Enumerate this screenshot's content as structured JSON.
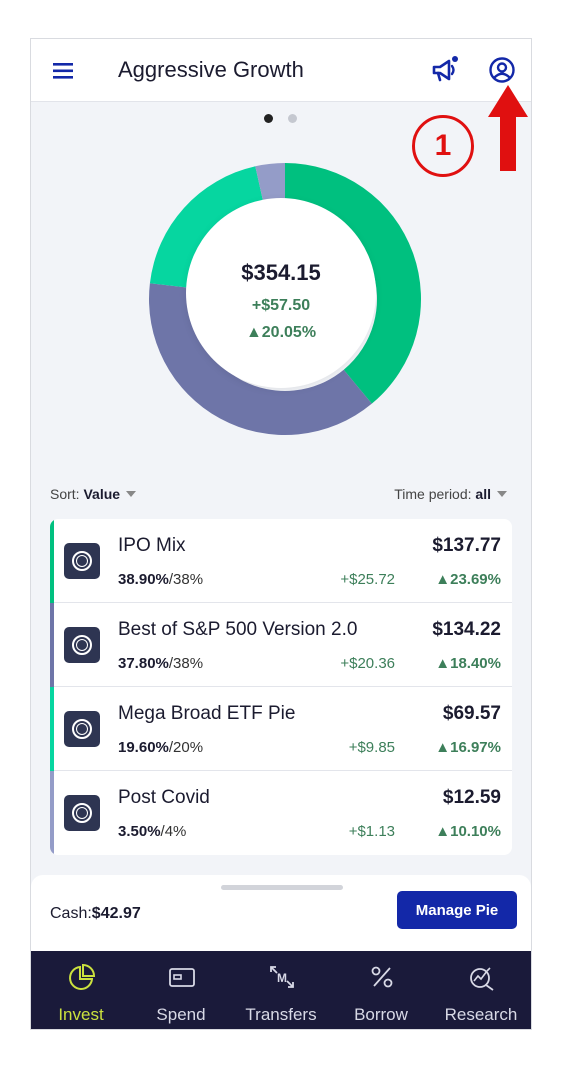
{
  "header": {
    "title": "Aggressive Growth"
  },
  "annotation": {
    "number": "1"
  },
  "colors": {
    "green": "#00c07f",
    "teal": "#06d6a0",
    "slate": "#6e75a8",
    "lavender": "#949cc8",
    "accent": "#1328a8",
    "nav_bg": "#1a1a3a",
    "nav_active": "#cbe13e",
    "annotation_red": "#e01010"
  },
  "donut": {
    "value": "$354.15",
    "gain": "+$57.50",
    "pct": "▲20.05%"
  },
  "chart_data": {
    "type": "pie",
    "categories": [
      "IPO Mix",
      "Best of S&P 500 Version 2.0",
      "Mega Broad ETF Pie",
      "Post Covid"
    ],
    "values": [
      38.9,
      37.8,
      19.6,
      3.5
    ],
    "colors": [
      "#00c07f",
      "#6e75a8",
      "#06d6a0",
      "#949cc8"
    ]
  },
  "sort": {
    "label": "Sort:",
    "value": "Value"
  },
  "time_period": {
    "label": "Time period:",
    "value": "all"
  },
  "slices": [
    {
      "name": "IPO Mix",
      "value": "$137.77",
      "actual": "38.90%",
      "target": "/38%",
      "gain": "+$25.72",
      "return": "▲23.69%",
      "color": "#00c07f"
    },
    {
      "name": "Best of S&P 500 Version 2.0",
      "value": "$134.22",
      "actual": "37.80%",
      "target": "/38%",
      "gain": "+$20.36",
      "return": "▲18.40%",
      "color": "#6e75a8"
    },
    {
      "name": "Mega Broad ETF Pie",
      "value": "$69.57",
      "actual": "19.60%",
      "target": "/20%",
      "gain": "+$9.85",
      "return": "▲16.97%",
      "color": "#06d6a0"
    },
    {
      "name": "Post Covid",
      "value": "$12.59",
      "actual": "3.50%",
      "target": "/4%",
      "gain": "+$1.13",
      "return": "▲10.10%",
      "color": "#949cc8"
    }
  ],
  "cash": {
    "label": "Cash:",
    "value": "$42.97"
  },
  "manage_button": "Manage Pie",
  "nav": [
    {
      "label": "Invest",
      "icon": "pie-chart-icon"
    },
    {
      "label": "Spend",
      "icon": "card-icon"
    },
    {
      "label": "Transfers",
      "icon": "transfers-icon"
    },
    {
      "label": "Borrow",
      "icon": "percent-icon"
    },
    {
      "label": "Research",
      "icon": "research-icon"
    }
  ]
}
